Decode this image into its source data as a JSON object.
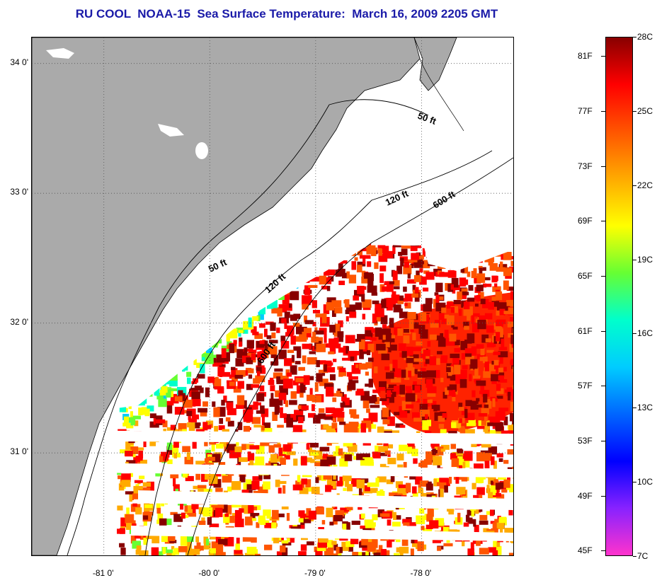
{
  "title": "RU COOL  NOAA-15  Sea Surface Temperature:  March 16, 2009 2205 GMT",
  "map": {
    "lat_labels": [
      "34 0'",
      "33 0'",
      "32 0'",
      "31 0'"
    ],
    "lat_values": [
      34,
      33,
      32,
      31
    ],
    "lon_labels": [
      "-81 0'",
      "-80 0'",
      "-79 0'",
      "-78 0'"
    ],
    "lon_values": [
      -81,
      -80,
      -79,
      -78
    ],
    "extent": {
      "lon_min": -81.68,
      "lon_max": -77.12,
      "lat_min": 30.2,
      "lat_max": 34.2
    },
    "contours": [
      {
        "label": "50 ft",
        "depth_ft": 50
      },
      {
        "label": "120 ft",
        "depth_ft": 120
      },
      {
        "label": "600 ft",
        "depth_ft": 600
      },
      {
        "label": "50 ft",
        "depth_ft": 50
      },
      {
        "label": "120 ft",
        "depth_ft": 120
      },
      {
        "label": "600 ft",
        "depth_ft": 600
      }
    ],
    "land_color": "#aaaaaa",
    "cloud_color": "#ffffff"
  },
  "colorbar": {
    "fahrenheit_labels": [
      "81F",
      "77F",
      "73F",
      "69F",
      "65F",
      "61F",
      "57F",
      "53F",
      "49F",
      "45F"
    ],
    "fahrenheit_values": [
      81,
      77,
      73,
      69,
      65,
      61,
      57,
      53,
      49,
      45
    ],
    "celsius_labels": [
      "28C",
      "25C",
      "22C",
      "19C",
      "16C",
      "13C",
      "10C",
      "7C"
    ],
    "celsius_values": [
      28,
      25,
      22,
      19,
      16,
      13,
      10,
      7
    ],
    "range_c": [
      7,
      28
    ],
    "stops": [
      "#ff33cc",
      "#8822ff",
      "#0000ff",
      "#0066ff",
      "#00ccff",
      "#00ffcc",
      "#66ff33",
      "#ffff00",
      "#ffaa00",
      "#ff5500",
      "#ff0000",
      "#880000"
    ]
  }
}
